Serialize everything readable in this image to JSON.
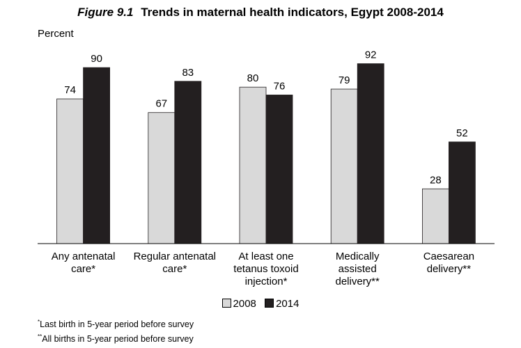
{
  "title_prefix": "Figure 9.1",
  "title_main": "Trends in maternal health indicators, Egypt 2008-2014",
  "colors": {
    "2008": "#d9d9d9",
    "2014": "#231f20",
    "axis": "#000000"
  },
  "chart_data": {
    "type": "bar",
    "ylabel": "Percent",
    "ylim": [
      0,
      100
    ],
    "categories": [
      [
        "Any antenatal",
        "care*"
      ],
      [
        "Regular antenatal",
        "care*"
      ],
      [
        "At least one",
        "tetanus toxoid",
        "injection*"
      ],
      [
        "Medically",
        "assisted",
        "delivery**"
      ],
      [
        "Caesarean",
        "delivery**"
      ]
    ],
    "series": [
      {
        "name": "2008",
        "values": [
          74,
          67,
          80,
          79,
          28
        ]
      },
      {
        "name": "2014",
        "values": [
          90,
          83,
          76,
          92,
          52
        ]
      }
    ],
    "grid": false,
    "legend_position": "bottom"
  },
  "legend": {
    "label_2008": "2008",
    "label_2014": "2014"
  },
  "notes": [
    {
      "mark": "*",
      "text": "Last birth in 5-year period before survey"
    },
    {
      "mark": "**",
      "text": "All births in 5-year period before survey"
    }
  ]
}
